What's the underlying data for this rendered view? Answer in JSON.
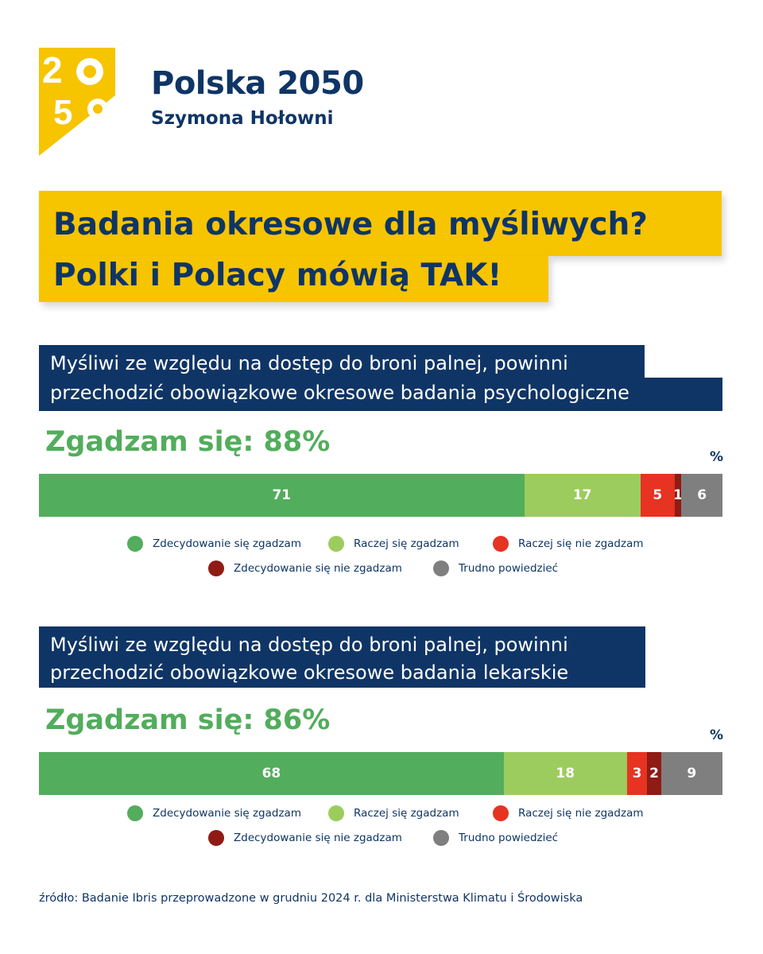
{
  "brand": {
    "logo_text": "2050",
    "title": "Polska 2050",
    "subtitle": "Szymona Hołowni"
  },
  "headline": {
    "line1": "Badania okresowe dla myśliwych?",
    "line2": "Polki i Polacy mówią TAK!"
  },
  "colors": {
    "navy": "#0f3566",
    "yellow": "#f7c400",
    "green": "#52ad5c",
    "light_green": "#9ccc5e",
    "red": "#e63322",
    "dark_red": "#8f1b14",
    "gray": "#7f7f7f"
  },
  "chart_data": [
    {
      "type": "bar",
      "orientation": "horizontal-stacked",
      "title": "Myśliwi ze względu na dostęp do broni palnej, powinni przechodzić obowiązkowe okresowe badania psychologiczne",
      "title_lines": [
        "Myśliwi ze względu na dostęp do broni palnej, powinni",
        "przechodzić obowiązkowe okresowe badania psychologiczne"
      ],
      "summary": "Zgadzam się: 88%",
      "unit": "%",
      "series": [
        {
          "name": "Zdecydowanie się zgadzam",
          "value": 71,
          "color": "#52ad5c",
          "label": "71"
        },
        {
          "name": "Raczej się zgadzam",
          "value": 17,
          "color": "#9ccc5e",
          "label": "17"
        },
        {
          "name": "Raczej się nie zgadzam",
          "value": 5,
          "color": "#e63322",
          "label": "5"
        },
        {
          "name": "Zdecydowanie się nie zgadzam",
          "value": 1,
          "color": "#8f1b14",
          "label": "1"
        },
        {
          "name": "Trudno powiedzieć",
          "value": 6,
          "color": "#7f7f7f",
          "label": "6"
        }
      ],
      "legend_placement": "bottom",
      "grid": false
    },
    {
      "type": "bar",
      "orientation": "horizontal-stacked",
      "title": "Myśliwi ze względu na dostęp do broni palnej, powinni przechodzić obowiązkowe okresowe badania lekarskie",
      "title_lines": [
        "Myśliwi ze względu na dostęp do broni palnej, powinni",
        "przechodzić obowiązkowe okresowe badania lekarskie"
      ],
      "summary": "Zgadzam się: 86%",
      "unit": "%",
      "series": [
        {
          "name": "Zdecydowanie się zgadzam",
          "value": 68,
          "color": "#52ad5c",
          "label": "68"
        },
        {
          "name": "Raczej się zgadzam",
          "value": 18,
          "color": "#9ccc5e",
          "label": "18"
        },
        {
          "name": "Raczej się nie zgadzam",
          "value": 3,
          "color": "#e63322",
          "label": "3"
        },
        {
          "name": "Zdecydowanie się nie zgadzam",
          "value": 2,
          "color": "#8f1b14",
          "label": "2"
        },
        {
          "name": "Trudno powiedzieć",
          "value": 9,
          "color": "#7f7f7f",
          "label": "9"
        }
      ],
      "legend_placement": "bottom",
      "grid": false
    }
  ],
  "source": "źródło: Badanie Ibris przeprowadzone w grudniu 2024 r. dla Ministerstwa Klimatu i Środowiska"
}
